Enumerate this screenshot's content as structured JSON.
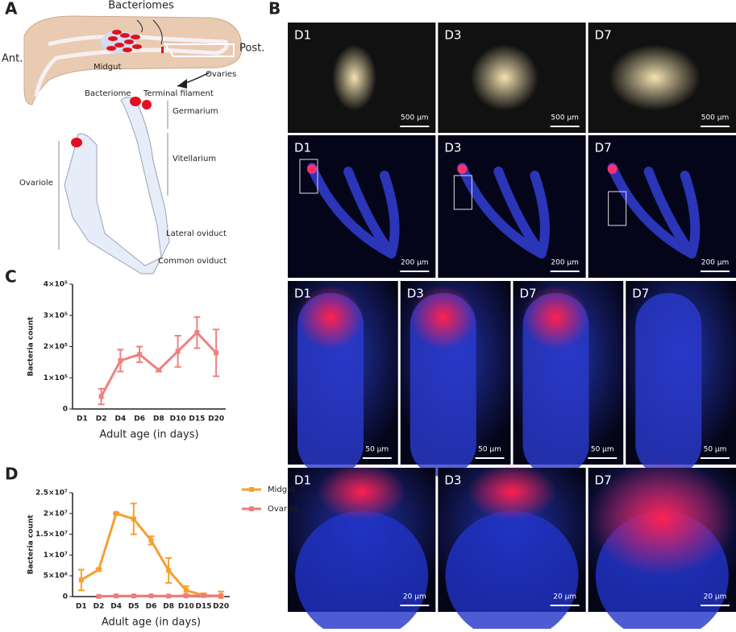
{
  "panel_labels": [
    "A",
    "B",
    "C",
    "D"
  ],
  "panel_a": {
    "bacteriomes": "Bacteriomes",
    "anterior": "Ant.",
    "posterior": "Post.",
    "midgut": "Midgut",
    "ovaries": "Ovaries",
    "bacteriome": "Bacteriome",
    "terminal_filament": "Terminal filament",
    "germarium": "Germarium",
    "vitellarium": "Vitellarium",
    "ovariole": "Ovariole",
    "lateral_oviduct": "Lateral oviduct",
    "common_oviduct": "Common oviduct"
  },
  "panel_b": {
    "rows": [
      [
        {
          "label": "D1",
          "scale": "500 μm"
        },
        {
          "label": "D3",
          "scale": "500 μm"
        },
        {
          "label": "D7",
          "scale": "500 μm"
        }
      ],
      [
        {
          "label": "D1",
          "scale": "200 μm"
        },
        {
          "label": "D3",
          "scale": "200 μm"
        },
        {
          "label": "D7",
          "scale": "200 μm"
        }
      ],
      [
        {
          "label": "D1",
          "scale": "50 μm"
        },
        {
          "label": "D3",
          "scale": "50 μm"
        },
        {
          "label": "D7",
          "scale": "50 μm"
        },
        {
          "label": "D7",
          "scale": "50 μm"
        }
      ],
      [
        {
          "label": "D1",
          "scale": "20 μm"
        },
        {
          "label": "D3",
          "scale": "20 μm"
        },
        {
          "label": "D7",
          "scale": "20 μm"
        }
      ]
    ]
  },
  "chart_data": [
    {
      "type": "line",
      "ylabel": "Bacteria count",
      "xlabel": "Adult age (in days)",
      "categories": [
        "D1",
        "D2",
        "D4",
        "D6",
        "D8",
        "D10",
        "D15",
        "D20"
      ],
      "series": [
        {
          "color": "#f08080",
          "values": [
            null,
            40000,
            155000,
            175000,
            125000,
            185000,
            245000,
            180000
          ],
          "errors": [
            null,
            25000,
            35000,
            25000,
            5000,
            50000,
            50000,
            75000
          ]
        }
      ],
      "ylim": [
        0,
        400000
      ],
      "yticks": [
        0,
        {
          "value": 100000,
          "label": "1×10⁵"
        },
        {
          "value": 200000,
          "label": "2×10⁵"
        },
        {
          "value": 300000,
          "label": "3×10⁵"
        },
        {
          "value": 400000,
          "label": "4×10⁵"
        }
      ]
    },
    {
      "type": "line",
      "ylabel": "Bacteria count",
      "xlabel": "Adult age (in days)",
      "legend": "right",
      "categories": [
        "D1",
        "D2",
        "D4",
        "D5",
        "D6",
        "D8",
        "D10",
        "D15",
        "D20"
      ],
      "series": [
        {
          "name": "Midgut",
          "color": "#f5a031",
          "values": [
            4000000,
            6500000,
            20000000,
            18700000,
            13500000,
            6300000,
            1500000,
            300000,
            0
          ],
          "errors": [
            2500000,
            300000,
            200000,
            3700000,
            1000000,
            3000000,
            1000000,
            500000,
            1200000
          ]
        },
        {
          "name": "Ovaries",
          "color": "#f07c7c",
          "values": [
            null,
            40000,
            155000,
            160000,
            175000,
            125000,
            185000,
            245000,
            180000
          ],
          "errors": [
            null,
            null,
            null,
            null,
            null,
            null,
            null,
            null,
            null
          ]
        }
      ],
      "ylim": [
        0,
        25000000
      ],
      "yticks": [
        0,
        {
          "value": 5000000,
          "label": "5×10⁶"
        },
        {
          "value": 10000000,
          "label": "1×10⁷"
        },
        {
          "value": 15000000,
          "label": "1.5×10⁷"
        },
        {
          "value": 20000000,
          "label": "2×10⁷"
        },
        {
          "value": 25000000,
          "label": "2.5×10⁷"
        }
      ]
    }
  ]
}
